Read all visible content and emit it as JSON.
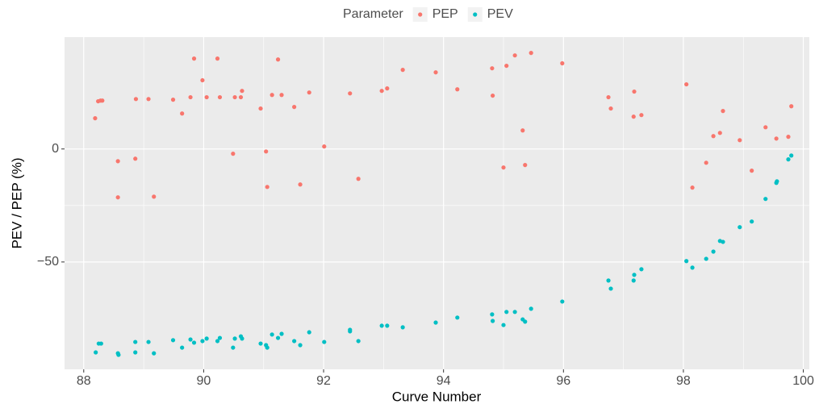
{
  "chart_data": {
    "type": "scatter",
    "x_label": "Curve Number",
    "y_label": "PEV / PEP (%)",
    "legend_title": "Parameter",
    "legend_position": "top",
    "grid": true,
    "xlim": [
      87.68,
      100.1
    ],
    "ylim": [
      -97.5,
      49.5
    ],
    "xticks": [
      88,
      90,
      92,
      94,
      96,
      98,
      100
    ],
    "yticks": [
      -50,
      0
    ],
    "series": [
      {
        "name": "PEP",
        "color": "#F8766D",
        "x": [
          88.19,
          88.24,
          88.28,
          88.31,
          88.57,
          88.57,
          88.86,
          88.87,
          89.08,
          89.17,
          89.49,
          89.64,
          89.78,
          89.84,
          89.98,
          90.05,
          90.23,
          90.27,
          90.49,
          90.52,
          90.62,
          90.64,
          90.95,
          91.04,
          91.06,
          91.14,
          91.24,
          91.3,
          91.51,
          91.61,
          91.76,
          92.01,
          92.44,
          92.58,
          92.97,
          93.06,
          93.32,
          93.87,
          94.23,
          94.81,
          94.82,
          95.0,
          95.05,
          95.19,
          95.32,
          95.36,
          95.46,
          95.98,
          96.75,
          96.79,
          97.17,
          97.18,
          97.3,
          98.05,
          98.15,
          98.38,
          98.5,
          98.61,
          98.66,
          98.94,
          99.14,
          99.37,
          99.55,
          99.75,
          99.8
        ],
        "values": [
          13.6,
          21.1,
          21.4,
          21.4,
          -5.4,
          -21.4,
          -4.3,
          22.1,
          22.1,
          -21.1,
          21.8,
          15.7,
          22.9,
          40,
          30.4,
          22.9,
          40,
          22.9,
          -2.1,
          22.9,
          22.9,
          25.7,
          17.9,
          -1.1,
          -16.8,
          23.9,
          39.6,
          23.9,
          18.6,
          -15.7,
          25,
          1.1,
          24.6,
          -13.2,
          25.7,
          26.8,
          35,
          33.9,
          26.4,
          35.7,
          23.6,
          -8.2,
          36.8,
          41.4,
          8.2,
          -7.1,
          42.5,
          37.9,
          22.9,
          17.9,
          14.3,
          25.4,
          15,
          28.6,
          -17.1,
          -6.1,
          5.7,
          7.1,
          16.8,
          3.9,
          -9.6,
          9.6,
          4.6,
          5.4,
          18.9
        ]
      },
      {
        "name": "PEV",
        "color": "#00BFC4",
        "x": [
          88.2,
          88.25,
          88.29,
          88.57,
          88.58,
          88.86,
          88.86,
          89.08,
          89.17,
          89.49,
          89.64,
          89.78,
          89.84,
          89.98,
          90.05,
          90.23,
          90.27,
          90.49,
          90.52,
          90.62,
          90.64,
          90.95,
          91.04,
          91.06,
          91.14,
          91.24,
          91.3,
          91.51,
          91.61,
          91.76,
          92.01,
          92.44,
          92.44,
          92.58,
          92.97,
          93.06,
          93.32,
          93.87,
          94.23,
          94.81,
          94.82,
          95.0,
          95.05,
          95.19,
          95.32,
          95.36,
          95.46,
          95.98,
          96.75,
          96.79,
          97.17,
          97.18,
          97.3,
          98.05,
          98.15,
          98.38,
          98.5,
          98.61,
          98.66,
          98.94,
          99.14,
          99.37,
          99.55,
          99.56,
          99.75,
          99.8
        ],
        "values": [
          -90,
          -86.1,
          -86.1,
          -90.4,
          -91.1,
          -85.4,
          -90,
          -85.4,
          -90.4,
          -84.6,
          -87.9,
          -84.3,
          -85.7,
          -85,
          -83.9,
          -85,
          -83.6,
          -87.9,
          -83.9,
          -82.9,
          -83.9,
          -86.1,
          -86.8,
          -87.9,
          -82.1,
          -83.6,
          -81.8,
          -85,
          -86.8,
          -81.1,
          -85.4,
          -80.7,
          -80,
          -85,
          -78.2,
          -78.2,
          -78.9,
          -76.8,
          -74.6,
          -73.2,
          -76.1,
          -77.9,
          -72.1,
          -72.1,
          -75.4,
          -76.4,
          -70.7,
          -67.5,
          -58.2,
          -61.8,
          -58.2,
          -55.7,
          -53.2,
          -49.6,
          -52.5,
          -48.6,
          -45.4,
          -40.7,
          -41.1,
          -34.6,
          -32.1,
          -22.1,
          -15,
          -14.3,
          -4.6,
          -2.9
        ]
      }
    ]
  }
}
